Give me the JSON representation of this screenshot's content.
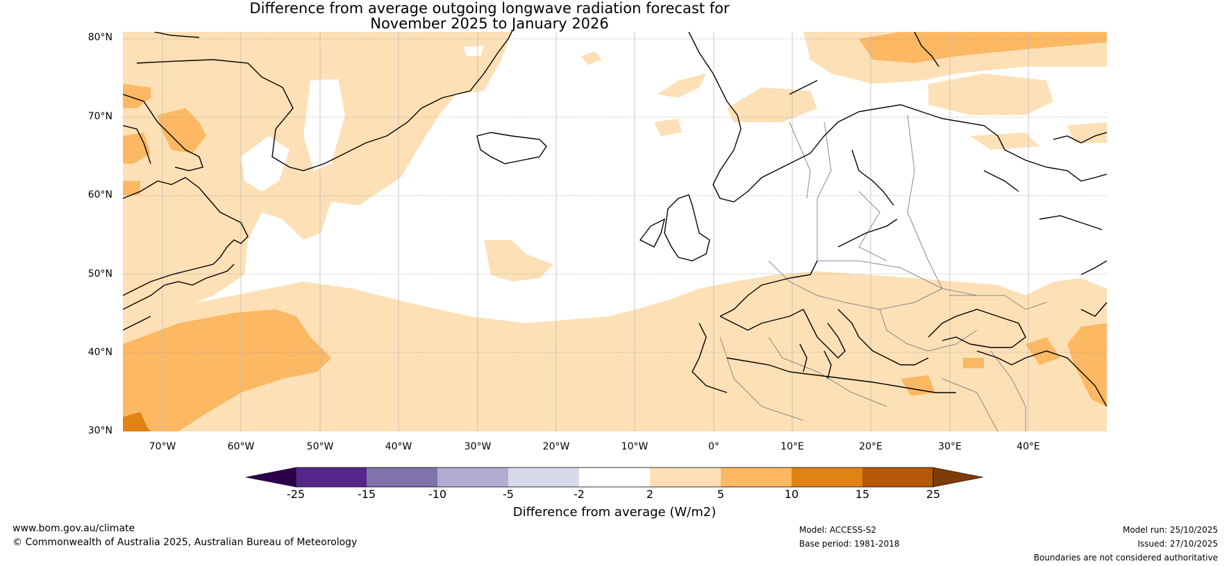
{
  "title": {
    "line1": "Difference from average outgoing longwave radiation forecast for",
    "line2": "November 2025 to January 2026"
  },
  "map": {
    "lat_labels": [
      "80°N",
      "70°N",
      "60°N",
      "50°N",
      "40°N",
      "30°N"
    ],
    "lon_labels": [
      "70°W",
      "60°W",
      "50°W",
      "40°W",
      "30°W",
      "20°W",
      "10°W",
      "0°",
      "10°E",
      "20°E",
      "30°E",
      "40°E"
    ],
    "colors": {
      "band_2_5": "#fde0b5",
      "band_5_10": "#fdb863",
      "band_10_15": "#e08214",
      "land_line": "#000000",
      "border_line": "#888888",
      "grid_line": "#888888"
    }
  },
  "colorbar": {
    "ticks": [
      "-25",
      "-15",
      "-10",
      "-5",
      "-2",
      "2",
      "5",
      "10",
      "15",
      "25"
    ],
    "bands": [
      {
        "color": "#2d004b"
      },
      {
        "color": "#542788"
      },
      {
        "color": "#8073ac"
      },
      {
        "color": "#b2abd2"
      },
      {
        "color": "#d8daeb"
      },
      {
        "color": "#ffffff"
      },
      {
        "color": "#fde0b5"
      },
      {
        "color": "#fdb863"
      },
      {
        "color": "#e08214"
      },
      {
        "color": "#b35806"
      },
      {
        "color": "#7f3b08"
      }
    ],
    "label": "Difference from average (W/m2)"
  },
  "footer": {
    "website": "www.bom.gov.au/climate",
    "copyright": "© Commonwealth of Australia 2025, Australian Bureau of Meteorology",
    "model": "Model: ACCESS-S2",
    "base_period": "Base period: 1981-2018",
    "model_run": "Model run: 25/10/2025",
    "issued": "Issued: 27/10/2025",
    "disclaimer": "Boundaries are not considered authoritative"
  }
}
